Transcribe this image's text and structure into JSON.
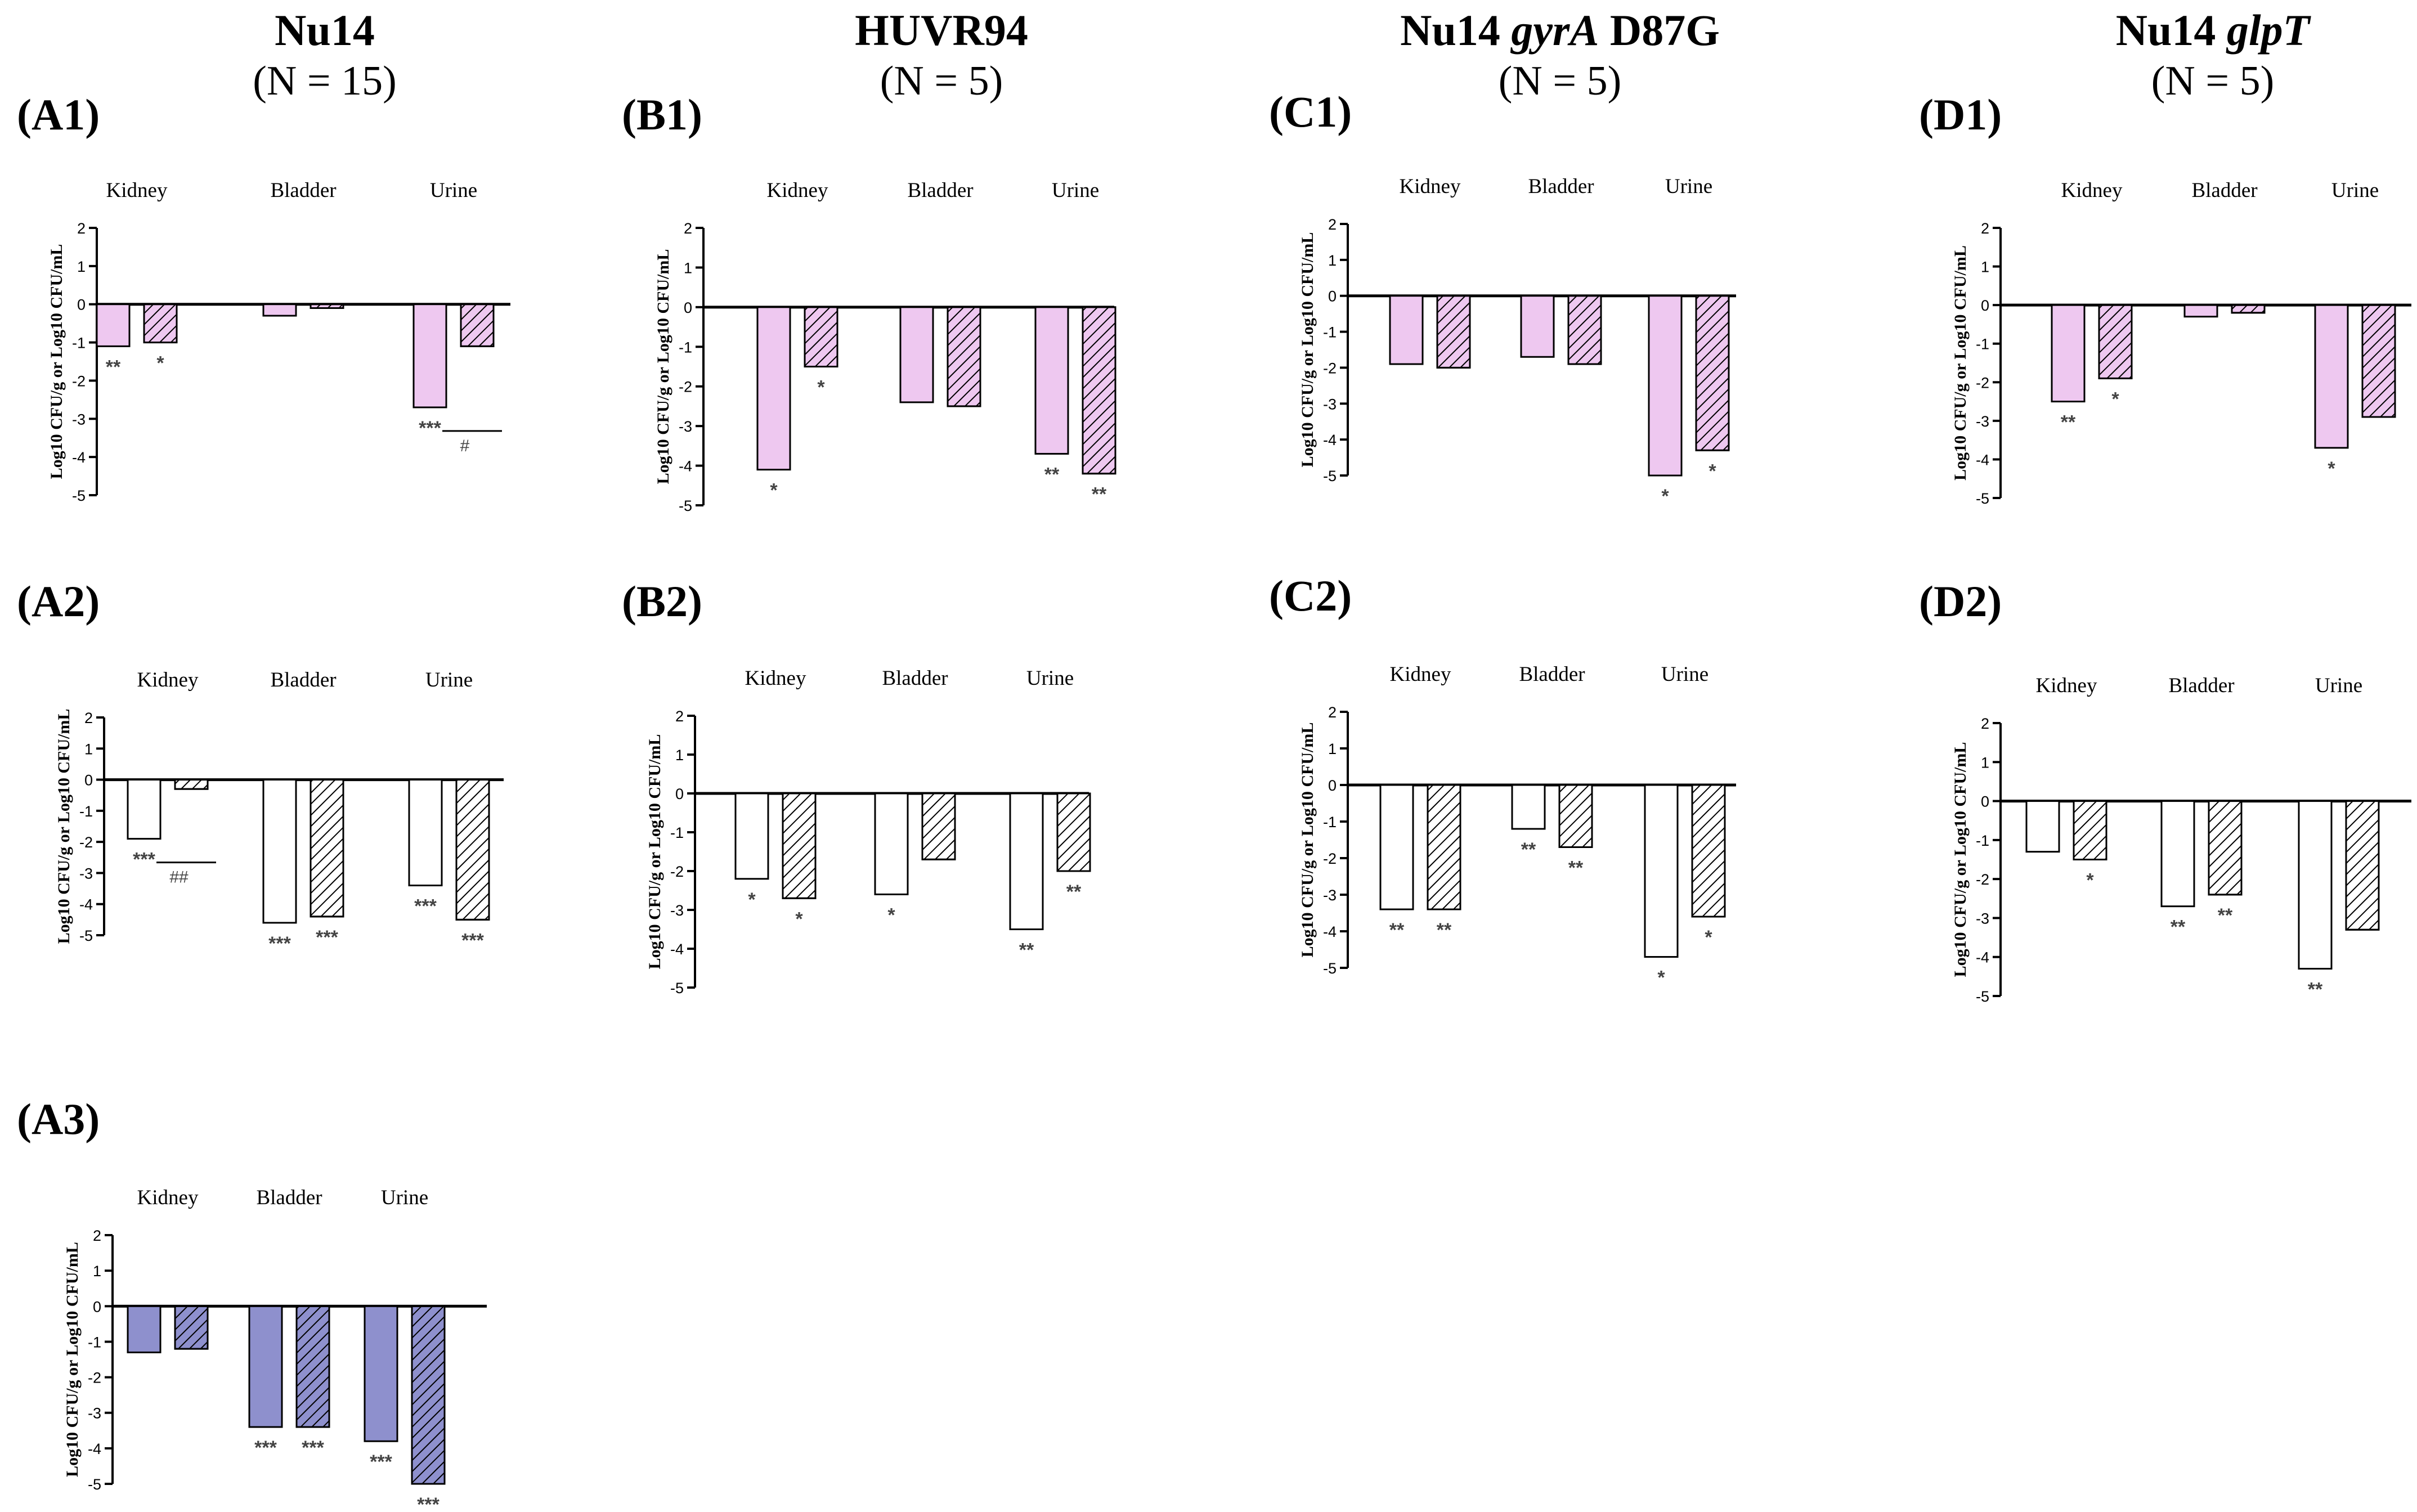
{
  "columns": [
    {
      "id": "A",
      "title": [
        {
          "text": "Nu14",
          "italic": false
        }
      ],
      "n": "(N = 15)"
    },
    {
      "id": "B",
      "title": [
        {
          "text": "HUVR94",
          "italic": false
        }
      ],
      "n": "(N = 5)"
    },
    {
      "id": "C",
      "title": [
        {
          "text": "Nu14 ",
          "italic": false
        },
        {
          "text": "gyrA",
          "italic": true
        },
        {
          "text": " D87G",
          "italic": false
        }
      ],
      "n": "(N = 5)"
    },
    {
      "id": "D",
      "title": [
        {
          "text": "Nu14 ",
          "italic": false
        },
        {
          "text": "glpT",
          "italic": true
        }
      ],
      "n": "(N = 5)"
    }
  ],
  "colors": {
    "pink": "#eec8f0",
    "blue": "#8e90cd",
    "white": "#ffffff",
    "axis": "#000000",
    "star": "#444444"
  },
  "chart_data": [
    {
      "id": "A1",
      "label": "(A1)",
      "type": "bar",
      "categories": [
        "Kidney",
        "Bladder",
        "Urine"
      ],
      "ylabel": "Log10 CFU/g or Log10 CFU/mL",
      "ylim": [
        -5,
        2
      ],
      "yticks": [
        2,
        1,
        0,
        -1,
        -2,
        -3,
        -4,
        -5
      ],
      "fill": "pink",
      "values": [
        [
          -1.1,
          -1.0
        ],
        [
          -0.3,
          -0.1
        ],
        [
          -2.7,
          -1.1
        ]
      ],
      "stars": [
        [
          "**",
          "*"
        ],
        [
          "",
          ""
        ],
        [
          "***",
          ""
        ]
      ],
      "brackets": [
        {
          "category": 2,
          "symbol": "#"
        }
      ]
    },
    {
      "id": "B1",
      "label": "(B1)",
      "type": "bar",
      "categories": [
        "Kidney",
        "Bladder",
        "Urine"
      ],
      "ylabel": "Log10 CFU/g or Log10 CFU/mL",
      "ylim": [
        -5,
        2
      ],
      "yticks": [
        2,
        1,
        0,
        -1,
        -2,
        -3,
        -4,
        -5
      ],
      "fill": "pink",
      "values": [
        [
          -4.1,
          -1.5
        ],
        [
          -2.4,
          -2.5
        ],
        [
          -3.7,
          -4.2
        ]
      ],
      "stars": [
        [
          "*",
          "*"
        ],
        [
          "",
          ""
        ],
        [
          "**",
          "**"
        ]
      ],
      "brackets": []
    },
    {
      "id": "C1",
      "label": "(C1)",
      "type": "bar",
      "categories": [
        "Kidney",
        "Bladder",
        "Urine"
      ],
      "ylabel": "Log10 CFU/g or Log10 CFU/mL",
      "ylim": [
        -5,
        2
      ],
      "yticks": [
        2,
        1,
        0,
        -1,
        -2,
        -3,
        -4,
        -5
      ],
      "fill": "pink",
      "values": [
        [
          -1.9,
          -2.0
        ],
        [
          -1.7,
          -1.9
        ],
        [
          -5.0,
          -4.3
        ]
      ],
      "stars": [
        [
          "",
          ""
        ],
        [
          "",
          ""
        ],
        [
          "*",
          "*"
        ]
      ],
      "brackets": []
    },
    {
      "id": "D1",
      "label": "(D1)",
      "type": "bar",
      "categories": [
        "Kidney",
        "Bladder",
        "Urine"
      ],
      "ylabel": "Log10 CFU/g or Log10 CFU/mL",
      "ylim": [
        -5,
        2
      ],
      "yticks": [
        2,
        1,
        0,
        -1,
        -2,
        -3,
        -4,
        -5
      ],
      "fill": "pink",
      "values": [
        [
          -2.5,
          -1.9
        ],
        [
          -0.3,
          -0.2
        ],
        [
          -3.7,
          -2.9
        ]
      ],
      "stars": [
        [
          "**",
          "*"
        ],
        [
          "",
          ""
        ],
        [
          "*",
          ""
        ]
      ],
      "brackets": []
    },
    {
      "id": "A2",
      "label": "(A2)",
      "type": "bar",
      "categories": [
        "Kidney",
        "Bladder",
        "Urine"
      ],
      "ylabel": "Log10 CFU/g or Log10 CFU/mL",
      "ylim": [
        -5,
        2
      ],
      "yticks": [
        2,
        1,
        0,
        -1,
        -2,
        -3,
        -4,
        -5
      ],
      "fill": "white",
      "values": [
        [
          -1.9,
          -0.3
        ],
        [
          -4.6,
          -4.4
        ],
        [
          -3.4,
          -4.5
        ]
      ],
      "stars": [
        [
          "***",
          ""
        ],
        [
          "***",
          "***"
        ],
        [
          "***",
          "***"
        ]
      ],
      "brackets": [
        {
          "category": 0,
          "symbol": "##"
        }
      ]
    },
    {
      "id": "B2",
      "label": "(B2)",
      "type": "bar",
      "categories": [
        "Kidney",
        "Bladder",
        "Urine"
      ],
      "ylabel": "Log10 CFU/g or Log10 CFU/mL",
      "ylim": [
        -5,
        2
      ],
      "yticks": [
        2,
        1,
        0,
        -1,
        -2,
        -3,
        -4,
        -5
      ],
      "fill": "white",
      "values": [
        [
          -2.2,
          -2.7
        ],
        [
          -2.6,
          -1.7
        ],
        [
          -3.5,
          -2.0
        ]
      ],
      "stars": [
        [
          "*",
          "*"
        ],
        [
          "*",
          ""
        ],
        [
          "**",
          "**"
        ]
      ],
      "brackets": []
    },
    {
      "id": "C2",
      "label": "(C2)",
      "type": "bar",
      "categories": [
        "Kidney",
        "Bladder",
        "Urine"
      ],
      "ylabel": "Log10 CFU/g or Log10 CFU/mL",
      "ylim": [
        -5,
        2
      ],
      "yticks": [
        2,
        1,
        0,
        -1,
        -2,
        -3,
        -4,
        -5
      ],
      "fill": "white",
      "values": [
        [
          -3.4,
          -3.4
        ],
        [
          -1.2,
          -1.7
        ],
        [
          -4.7,
          -3.6
        ]
      ],
      "stars": [
        [
          "**",
          "**"
        ],
        [
          "**",
          "**"
        ],
        [
          "*",
          "*"
        ]
      ],
      "brackets": []
    },
    {
      "id": "D2",
      "label": "(D2)",
      "type": "bar",
      "categories": [
        "Kidney",
        "Bladder",
        "Urine"
      ],
      "ylabel": "Log10 CFU/g or Log10 CFU/mL",
      "ylim": [
        -5,
        2
      ],
      "yticks": [
        2,
        1,
        0,
        -1,
        -2,
        -3,
        -4,
        -5
      ],
      "fill": "white",
      "values": [
        [
          -1.3,
          -1.5
        ],
        [
          -2.7,
          -2.4
        ],
        [
          -4.3,
          -3.3
        ]
      ],
      "stars": [
        [
          "",
          "*"
        ],
        [
          "**",
          "**"
        ],
        [
          "**",
          ""
        ]
      ],
      "brackets": []
    },
    {
      "id": "A3",
      "label": "(A3)",
      "type": "bar",
      "categories": [
        "Kidney",
        "Bladder",
        "Urine"
      ],
      "ylabel": "Log10 CFU/g or Log10 CFU/mL",
      "ylim": [
        -5,
        2
      ],
      "yticks": [
        2,
        1,
        0,
        -1,
        -2,
        -3,
        -4,
        -5
      ],
      "fill": "blue",
      "values": [
        [
          -1.3,
          -1.2
        ],
        [
          -3.4,
          -3.4
        ],
        [
          -3.8,
          -5.0
        ]
      ],
      "stars": [
        [
          "",
          ""
        ],
        [
          "***",
          "***"
        ],
        [
          "***",
          "***"
        ]
      ],
      "brackets": []
    }
  ]
}
